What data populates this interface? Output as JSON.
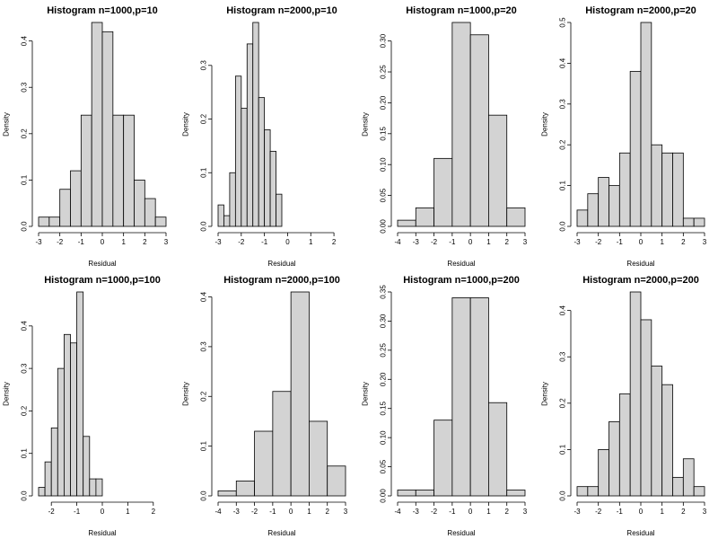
{
  "chart_data": [
    {
      "type": "bar",
      "title": "Histogram n=1000,p=10",
      "xlabel": "Residual",
      "ylabel": "Density",
      "xlim": [
        -3,
        3
      ],
      "ylim": [
        0,
        0.44
      ],
      "xticks": [
        -3,
        -2,
        -1,
        0,
        1,
        2,
        3
      ],
      "xtick_labels": [
        "-3",
        "-2",
        "-1",
        "0",
        "1",
        "2",
        "3"
      ],
      "yticks": [
        0,
        0.1,
        0.2,
        0.3,
        0.4
      ],
      "ytick_labels": [
        "0.0",
        "0.1",
        "0.2",
        "0.3",
        "0.4"
      ],
      "bin_start": -3,
      "bin_width": 0.5,
      "values": [
        0.02,
        0.02,
        0.08,
        0.12,
        0.24,
        0.44,
        0.42,
        0.24,
        0.24,
        0.1,
        0.06,
        0.02
      ]
    },
    {
      "type": "bar",
      "title": "Histogram n=2000,p=10",
      "xlabel": "Residual",
      "ylabel": "Density",
      "xlim": [
        -3,
        2.5
      ],
      "ylim": [
        0,
        0.38
      ],
      "xticks": [
        -3,
        -2,
        -1,
        0,
        1,
        2
      ],
      "xtick_labels": [
        "-3",
        "-2",
        "-1",
        "0",
        "1",
        "2"
      ],
      "yticks": [
        0,
        0.1,
        0.2,
        0.3
      ],
      "ytick_labels": [
        "0.0",
        "0.1",
        "0.2",
        "0.3"
      ],
      "bin_start": -3,
      "bin_width": 0.25,
      "values": [
        0.04,
        0.02,
        0.1,
        0.28,
        0.22,
        0.34,
        0.38,
        0.24,
        0.18,
        0.14,
        0.06
      ]
    },
    {
      "type": "bar",
      "title": "Histogram n=1000,p=20",
      "xlabel": "Residual",
      "ylabel": "Density",
      "xlim": [
        -4,
        3
      ],
      "ylim": [
        0,
        0.33
      ],
      "xticks": [
        -4,
        -3,
        -2,
        -1,
        0,
        1,
        2,
        3
      ],
      "xtick_labels": [
        "-4",
        "-3",
        "-2",
        "-1",
        "0",
        "1",
        "2",
        "3"
      ],
      "yticks": [
        0,
        0.05,
        0.1,
        0.15,
        0.2,
        0.25,
        0.3
      ],
      "ytick_labels": [
        "0.00",
        "0.05",
        "0.10",
        "0.15",
        "0.20",
        "0.25",
        "0.30"
      ],
      "bin_start": -4,
      "bin_width": 1,
      "values": [
        0.01,
        0.03,
        0.11,
        0.33,
        0.31,
        0.18,
        0.03
      ]
    },
    {
      "type": "bar",
      "title": "Histogram n=2000,p=20",
      "xlabel": "Residual",
      "ylabel": "Density",
      "xlim": [
        -3,
        3
      ],
      "ylim": [
        0,
        0.5
      ],
      "xticks": [
        -3,
        -2,
        -1,
        0,
        1,
        2,
        3
      ],
      "xtick_labels": [
        "-3",
        "-2",
        "-1",
        "0",
        "1",
        "2",
        "3"
      ],
      "yticks": [
        0,
        0.1,
        0.2,
        0.3,
        0.4,
        0.5
      ],
      "ytick_labels": [
        "0.0",
        "0.1",
        "0.2",
        "0.3",
        "0.4",
        "0.5"
      ],
      "bin_start": -3,
      "bin_width": 0.5,
      "values": [
        0.04,
        0.08,
        0.12,
        0.1,
        0.18,
        0.38,
        0.5,
        0.2,
        0.18,
        0.18,
        0.02,
        0.02
      ]
    },
    {
      "type": "bar",
      "title": "Histogram n=1000,p=100",
      "xlabel": "Residual",
      "ylabel": "Density",
      "xlim": [
        -2.5,
        2.5
      ],
      "ylim": [
        0,
        0.48
      ],
      "xticks": [
        -2,
        -1,
        0,
        1,
        2
      ],
      "xtick_labels": [
        "-2",
        "-1",
        "0",
        "1",
        "2"
      ],
      "yticks": [
        0,
        0.1,
        0.2,
        0.3,
        0.4
      ],
      "ytick_labels": [
        "0.0",
        "0.1",
        "0.2",
        "0.3",
        "0.4"
      ],
      "bin_start": -2.5,
      "bin_width": 0.25,
      "values": [
        0.02,
        0.08,
        0.16,
        0.3,
        0.38,
        0.36,
        0.48,
        0.14,
        0.04,
        0.04
      ]
    },
    {
      "type": "bar",
      "title": "Histogram n=2000,p=100",
      "xlabel": "Residual",
      "ylabel": "Density",
      "xlim": [
        -4,
        3
      ],
      "ylim": [
        0,
        0.41
      ],
      "xticks": [
        -4,
        -3,
        -2,
        -1,
        0,
        1,
        2,
        3
      ],
      "xtick_labels": [
        "-4",
        "-3",
        "-2",
        "-1",
        "0",
        "1",
        "2",
        "3"
      ],
      "yticks": [
        0,
        0.1,
        0.2,
        0.3,
        0.4
      ],
      "ytick_labels": [
        "0.0",
        "0.1",
        "0.2",
        "0.3",
        "0.4"
      ],
      "bin_start": -4,
      "bin_width": 1,
      "values": [
        0.01,
        0.03,
        0.13,
        0.21,
        0.41,
        0.15,
        0.06
      ]
    },
    {
      "type": "bar",
      "title": "Histogram n=1000,p=200",
      "xlabel": "Residual",
      "ylabel": "Density",
      "xlim": [
        -4,
        3
      ],
      "ylim": [
        0,
        0.35
      ],
      "xticks": [
        -4,
        -3,
        -2,
        -1,
        0,
        1,
        2,
        3
      ],
      "xtick_labels": [
        "-4",
        "-3",
        "-2",
        "-1",
        "0",
        "1",
        "2",
        "3"
      ],
      "yticks": [
        0,
        0.05,
        0.1,
        0.15,
        0.2,
        0.25,
        0.3,
        0.35
      ],
      "ytick_labels": [
        "0.00",
        "0.05",
        "0.10",
        "0.15",
        "0.20",
        "0.25",
        "0.30",
        "0.35"
      ],
      "bin_start": -4,
      "bin_width": 1,
      "values": [
        0.01,
        0.01,
        0.13,
        0.34,
        0.34,
        0.16,
        0.01
      ]
    },
    {
      "type": "bar",
      "title": "Histogram n=2000,p=200",
      "xlabel": "Residual",
      "ylabel": "Density",
      "xlim": [
        -3,
        3
      ],
      "ylim": [
        0,
        0.44
      ],
      "xticks": [
        -3,
        -2,
        -1,
        0,
        1,
        2,
        3
      ],
      "xtick_labels": [
        "-3",
        "-2",
        "-1",
        "0",
        "1",
        "2",
        "3"
      ],
      "yticks": [
        0,
        0.1,
        0.2,
        0.3,
        0.4
      ],
      "ytick_labels": [
        "0.0",
        "0.1",
        "0.2",
        "0.3",
        "0.4"
      ],
      "bin_start": -3,
      "bin_width": 0.5,
      "values": [
        0.02,
        0.02,
        0.1,
        0.16,
        0.22,
        0.44,
        0.38,
        0.28,
        0.24,
        0.04,
        0.08,
        0.02
      ]
    }
  ],
  "colors": {
    "bar_fill": "#d3d3d3",
    "bar_stroke": "#000000",
    "axis": "#000000",
    "background": "#ffffff"
  }
}
